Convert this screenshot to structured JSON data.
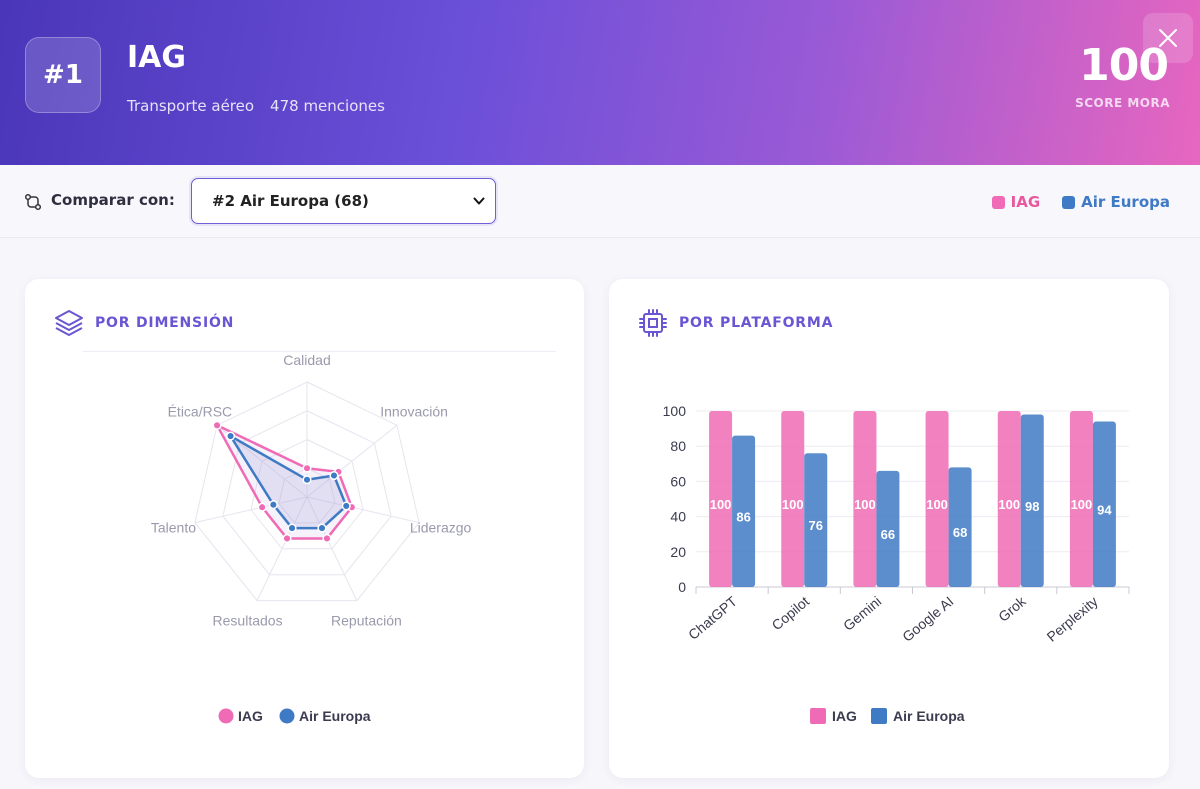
{
  "header": {
    "rank": "#1",
    "brand": "IAG",
    "sector": "Transporte aéreo",
    "mentions": "478 menciones",
    "score": "100",
    "score_label": "SCORE MORA"
  },
  "toolbar": {
    "compare_label": "Comparar con:",
    "selected_option": "#2 Air Europa (68)",
    "legend": [
      {
        "label": "IAG",
        "color": "#f06bb5"
      },
      {
        "label": "Air Europa",
        "color": "#3f7ac4"
      }
    ]
  },
  "dimension_card": {
    "title": "POR DIMENSIÓN",
    "legend": [
      "IAG",
      "Air Europa"
    ]
  },
  "platform_card": {
    "title": "POR PLATAFORMA",
    "legend": [
      "IAG",
      "Air Europa"
    ]
  },
  "colors": {
    "iag": "#f06bb5",
    "air_europa": "#3f7ac4",
    "accent": "#6a55d2"
  },
  "chart_data": [
    {
      "type": "radar",
      "axes": [
        "Calidad",
        "Innovación",
        "Liderazgo",
        "Reputación",
        "Resultados",
        "Talento",
        "Ética/RSC"
      ],
      "series": [
        {
          "name": "IAG",
          "values": [
            25,
            35,
            40,
            40,
            40,
            40,
            100
          ]
        },
        {
          "name": "Air Europa",
          "values": [
            15,
            30,
            35,
            30,
            30,
            30,
            85
          ]
        }
      ],
      "range": [
        0,
        100
      ]
    },
    {
      "type": "bar",
      "categories": [
        "ChatGPT",
        "Copilot",
        "Gemini",
        "Google AI",
        "Grok",
        "Perplexity"
      ],
      "series": [
        {
          "name": "IAG",
          "values": [
            100,
            100,
            100,
            100,
            100,
            100
          ]
        },
        {
          "name": "Air Europa",
          "values": [
            86,
            76,
            66,
            68,
            98,
            94
          ]
        }
      ],
      "yticks": [
        0,
        20,
        40,
        60,
        80,
        100
      ],
      "ylim": [
        0,
        100
      ],
      "legend_position": "bottom"
    }
  ]
}
